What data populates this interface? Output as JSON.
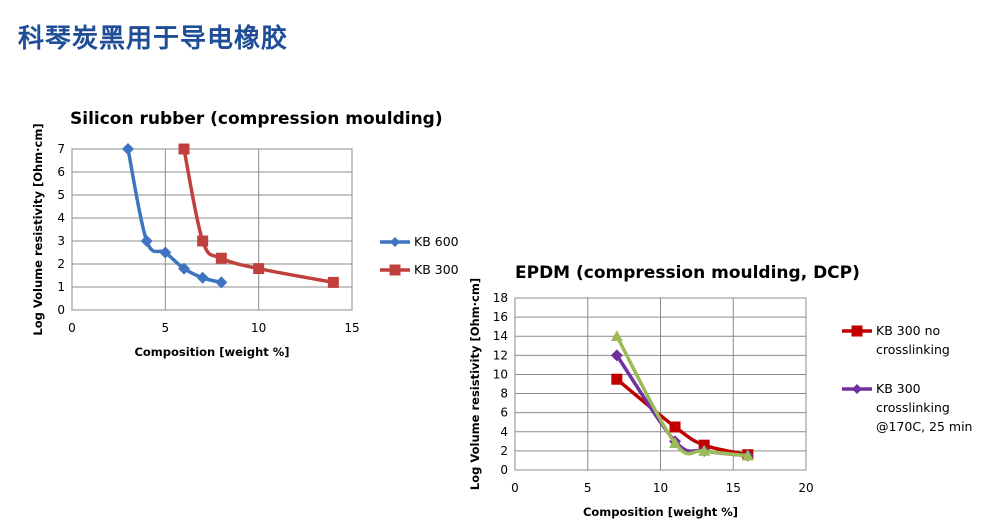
{
  "page": {
    "title": "科琴炭黑用于导电橡胶"
  },
  "chart_data": [
    {
      "type": "line",
      "title": "Silicon rubber (compression moulding)",
      "xlabel": "Composition [weight %]",
      "ylabel": "Log Volume resistivity [Ohm·cm]",
      "xlim": [
        0,
        15
      ],
      "ylim": [
        0,
        7
      ],
      "xticks": [
        0,
        5,
        10,
        15
      ],
      "yticks": [
        0,
        1,
        2,
        3,
        4,
        5,
        6,
        7
      ],
      "grid": true,
      "legend": "right",
      "series": [
        {
          "name": "KB 600",
          "color": "#3f74c0",
          "marker": "diamond",
          "x": [
            3,
            4,
            5,
            6,
            7,
            8
          ],
          "y": [
            7,
            3,
            2.5,
            1.8,
            1.4,
            1.2
          ]
        },
        {
          "name": "KB 300",
          "color": "#c0403e",
          "marker": "square",
          "x": [
            6,
            7,
            8,
            10,
            14
          ],
          "y": [
            7,
            3,
            2.25,
            1.8,
            1.2
          ]
        }
      ]
    },
    {
      "type": "line",
      "title": "EPDM (compression moulding, DCP)",
      "xlabel": "Composition [weight %]",
      "ylabel": "Log Volume resistivity [Ohm·cm]",
      "xlim": [
        0,
        20
      ],
      "ylim": [
        0,
        18
      ],
      "xticks": [
        0,
        5,
        10,
        15,
        20
      ],
      "yticks": [
        0,
        2,
        4,
        6,
        8,
        10,
        12,
        14,
        16,
        18
      ],
      "grid": true,
      "legend": "right",
      "series": [
        {
          "name": "KB 300 no crosslinking",
          "legend_lines": [
            "KB 300 no",
            "crosslinking"
          ],
          "color": "#c00000",
          "marker": "square",
          "x": [
            7,
            11,
            13,
            16
          ],
          "y": [
            9.5,
            4.5,
            2.6,
            1.6
          ]
        },
        {
          "name": "KB 300 crosslinking @170C, 25 min",
          "legend_lines": [
            "KB 300",
            "crosslinking",
            "@170C, 25 min"
          ],
          "color": "#7030a0",
          "marker": "diamond",
          "x": [
            7,
            11,
            13,
            16
          ],
          "y": [
            12,
            3,
            2,
            1.5
          ]
        },
        {
          "name": "",
          "color": "#9bbb59",
          "marker": "triangle",
          "x": [
            7,
            11,
            13,
            16
          ],
          "y": [
            14,
            2.8,
            2,
            1.5
          ]
        }
      ]
    }
  ]
}
